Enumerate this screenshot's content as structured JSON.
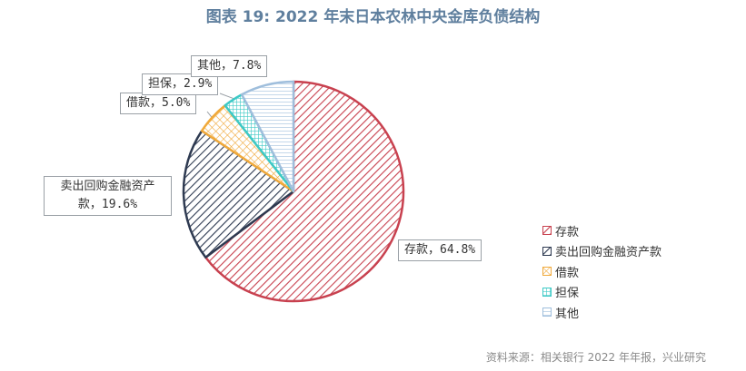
{
  "title": "图表 19: 2022 年末日本农林中央金库负债结构",
  "source": "资料来源：相关银行 2022 年年报，兴业研究",
  "chart_data": {
    "type": "pie",
    "title": "图表 19: 2022 年末日本农林中央金库负债结构",
    "unit": "%",
    "start": "12 o'clock, clockwise",
    "slices": [
      {
        "label": "存款",
        "value": 64.8,
        "color": "#c8414f",
        "pattern": "diagonal-hatch",
        "data_label": "存款, 64.8%"
      },
      {
        "label": "卖出回购金融资产款",
        "value": 19.6,
        "color": "#2e3a51",
        "pattern": "diagonal-hatch",
        "data_label": "卖出回购金融资产款, 19.6%"
      },
      {
        "label": "借款",
        "value": 5.0,
        "color": "#f0a93a",
        "pattern": "crosshatch",
        "data_label": "借款, 5.0%"
      },
      {
        "label": "担保",
        "value": 2.9,
        "color": "#3cc9c6",
        "pattern": "grid",
        "data_label": "担保, 2.9%"
      },
      {
        "label": "其他",
        "value": 7.8,
        "color": "#9fbedc",
        "pattern": "horizontal-lines",
        "data_label": "其他, 7.8%"
      }
    ],
    "legend": {
      "position": "right"
    }
  },
  "labels": {
    "deposit": "存款，64.8%",
    "repo_line1": "卖出回购金融资产",
    "repo_line2": "款，19.6%",
    "borrow": "借款，5.0%",
    "guarantee": "担保，2.9%",
    "other": "其他，7.8%"
  },
  "legend": [
    "存款",
    "卖出回购金融资产款",
    "借款",
    "担保",
    "其他"
  ]
}
